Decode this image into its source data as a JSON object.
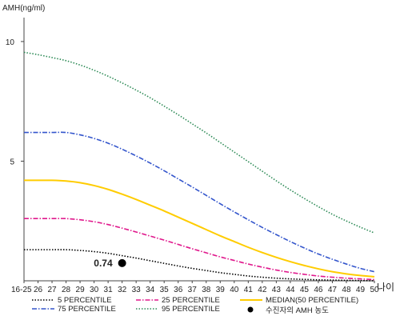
{
  "chart_data": {
    "type": "line",
    "title": "",
    "ylabel": "AMH(ng/ml)",
    "xlabel": "나이",
    "x_categories": [
      "16-25",
      "26",
      "27",
      "28",
      "29",
      "30",
      "31",
      "32",
      "33",
      "34",
      "35",
      "36",
      "37",
      "38",
      "39",
      "40",
      "41",
      "42",
      "43",
      "44",
      "45",
      "46",
      "47",
      "48",
      "49",
      "50"
    ],
    "y_ticks": [
      5,
      10
    ],
    "ylim": [
      0,
      11
    ],
    "grid": false,
    "legend_position": "bottom",
    "series": [
      {
        "name": "5 PERCENTILE",
        "color": "#000000",
        "style": "dotted",
        "values": [
          1.3,
          1.3,
          1.3,
          1.3,
          1.27,
          1.22,
          1.15,
          1.05,
          0.95,
          0.84,
          0.73,
          0.62,
          0.52,
          0.43,
          0.34,
          0.27,
          0.2,
          0.15,
          0.11,
          0.08,
          0.06,
          0.04,
          0.03,
          0.02,
          0.01,
          0.0
        ]
      },
      {
        "name": "25 PERCENTILE",
        "color": "#e0188c",
        "style": "dashdot",
        "values": [
          2.6,
          2.6,
          2.6,
          2.6,
          2.55,
          2.47,
          2.35,
          2.2,
          2.04,
          1.87,
          1.7,
          1.52,
          1.34,
          1.17,
          1.0,
          0.85,
          0.7,
          0.57,
          0.45,
          0.35,
          0.27,
          0.2,
          0.15,
          0.11,
          0.08,
          0.05
        ]
      },
      {
        "name": "MEDIAN(50 PERCENTILE)",
        "color": "#ffcc00",
        "style": "solid",
        "values": [
          4.2,
          4.2,
          4.2,
          4.17,
          4.1,
          3.98,
          3.82,
          3.62,
          3.4,
          3.16,
          2.92,
          2.66,
          2.4,
          2.14,
          1.88,
          1.64,
          1.4,
          1.18,
          0.98,
          0.8,
          0.64,
          0.5,
          0.38,
          0.29,
          0.22,
          0.17
        ]
      },
      {
        "name": "75 PERCENTILE",
        "color": "#3355cc",
        "style": "dashdot",
        "values": [
          6.2,
          6.2,
          6.2,
          6.2,
          6.1,
          5.95,
          5.75,
          5.5,
          5.22,
          4.92,
          4.6,
          4.26,
          3.92,
          3.57,
          3.22,
          2.88,
          2.55,
          2.23,
          1.93,
          1.64,
          1.37,
          1.12,
          0.9,
          0.7,
          0.52,
          0.38
        ]
      },
      {
        "name": "95 PERCENTILE",
        "color": "#2e8b57",
        "style": "dotted",
        "values": [
          9.55,
          9.45,
          9.33,
          9.2,
          9.02,
          8.8,
          8.55,
          8.27,
          7.97,
          7.65,
          7.3,
          6.94,
          6.56,
          6.18,
          5.78,
          5.38,
          4.98,
          4.58,
          4.18,
          3.8,
          3.44,
          3.1,
          2.78,
          2.5,
          2.24,
          2.0
        ]
      }
    ],
    "marker": {
      "name": "수진자의 AMH 농도",
      "x": "32",
      "y": 0.74,
      "label": "0.74",
      "color": "#000000"
    }
  }
}
